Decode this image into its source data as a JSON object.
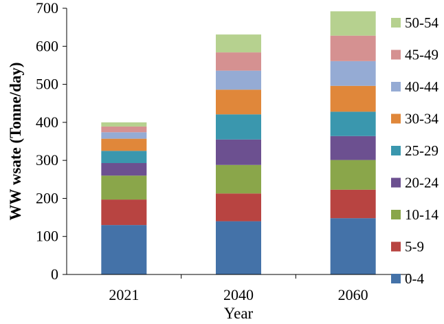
{
  "chart_data": {
    "type": "bar",
    "stacked": true,
    "categories": [
      "2021",
      "2040",
      "2060"
    ],
    "xlabel": "Year",
    "ylabel": "WW wsate (Tonne/day)",
    "ylim": [
      0,
      700
    ],
    "yticks": [
      0,
      100,
      200,
      300,
      400,
      500,
      600,
      700
    ],
    "grid": false,
    "legend_position": "right",
    "series": [
      {
        "name": "0-4",
        "color": "#4472a8",
        "values": [
          130,
          140,
          148
        ]
      },
      {
        "name": "5-9",
        "color": "#b84441",
        "values": [
          67,
          73,
          75
        ]
      },
      {
        "name": "10-14",
        "color": "#8aa64a",
        "values": [
          63,
          75,
          78
        ]
      },
      {
        "name": "20-24",
        "color": "#6c5090",
        "values": [
          33,
          67,
          63
        ]
      },
      {
        "name": "25-29",
        "color": "#3a97ae",
        "values": [
          32,
          66,
          64
        ]
      },
      {
        "name": "30-34",
        "color": "#e0873a",
        "values": [
          32,
          65,
          68
        ]
      },
      {
        "name": "40-44",
        "color": "#95abd4",
        "values": [
          17,
          50,
          65
        ]
      },
      {
        "name": "45-49",
        "color": "#d59191",
        "values": [
          15,
          48,
          67
        ]
      },
      {
        "name": "50-54",
        "color": "#b6d18f",
        "values": [
          11,
          47,
          64
        ]
      }
    ]
  }
}
